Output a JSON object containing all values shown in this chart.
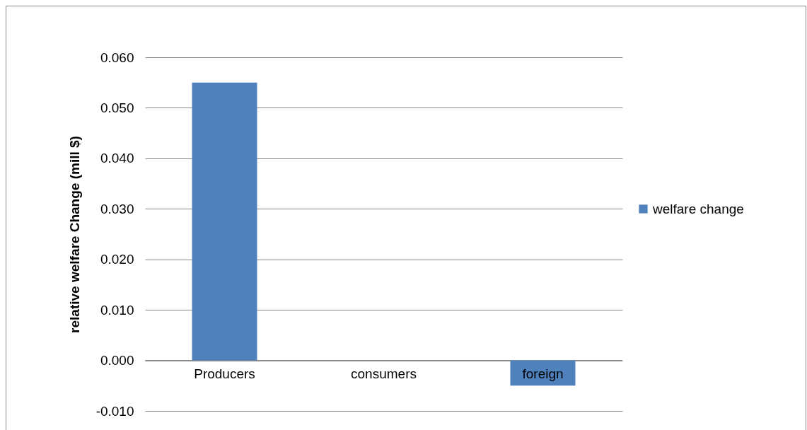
{
  "chart_data": {
    "type": "bar",
    "categories": [
      "Producers",
      "consumers",
      "foreign"
    ],
    "series": [
      {
        "name": "welfare change",
        "color": "#4f81bd",
        "values": [
          0.055,
          0,
          -0.005
        ]
      }
    ],
    "ylabel": "relative welfare Change (mill $)",
    "ylim": [
      -0.01,
      0.06
    ],
    "yticks": [
      {
        "value": -0.01,
        "label": "-0.010"
      },
      {
        "value": 0,
        "label": "0.000"
      },
      {
        "value": 0.01,
        "label": "0.010"
      },
      {
        "value": 0.02,
        "label": "0.020"
      },
      {
        "value": 0.03,
        "label": "0.030"
      },
      {
        "value": 0.04,
        "label": "0.040"
      },
      {
        "value": 0.05,
        "label": "0.050"
      },
      {
        "value": 0.06,
        "label": "0.060"
      }
    ],
    "grid": "y",
    "legend": "right"
  }
}
